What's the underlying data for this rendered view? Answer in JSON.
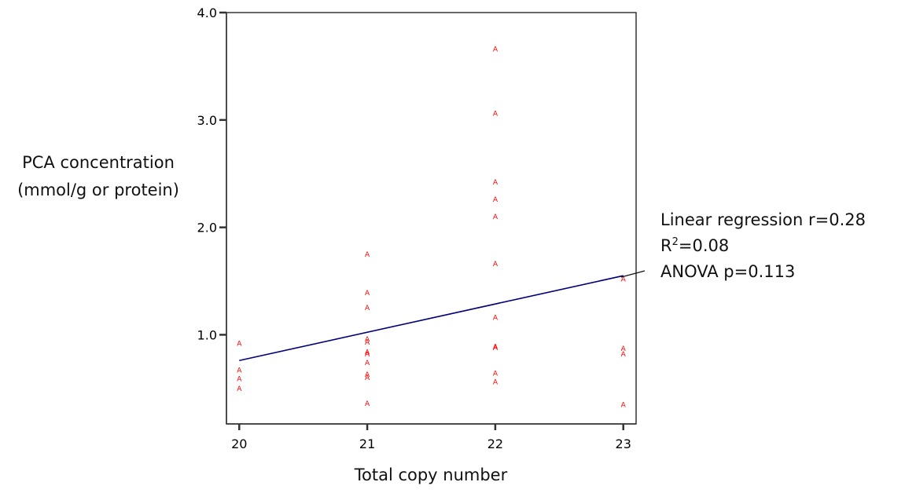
{
  "chart_data": {
    "type": "scatter",
    "xlabel": "Total copy number",
    "ylabel_lines": [
      "PCA concentration",
      "(mmol/g or protein)"
    ],
    "xlim": [
      19.9,
      23.1
    ],
    "ylim": [
      0.17,
      4.0
    ],
    "x_ticks": [
      20,
      21,
      22,
      23
    ],
    "x_tick_labels": [
      "20",
      "21",
      "22",
      "23"
    ],
    "y_ticks": [
      1.0,
      2.0,
      3.0,
      4.0
    ],
    "y_tick_labels": [
      "1.0",
      "2.0",
      "3.0",
      "4.0"
    ],
    "grid": false,
    "marker_symbol": "A",
    "marker_color": "#ff0000",
    "line_color": "#00007a",
    "points": [
      {
        "x": 20,
        "y": 0.92
      },
      {
        "x": 20,
        "y": 0.67
      },
      {
        "x": 20,
        "y": 0.59
      },
      {
        "x": 20,
        "y": 0.5
      },
      {
        "x": 21,
        "y": 1.75
      },
      {
        "x": 21,
        "y": 1.39
      },
      {
        "x": 21,
        "y": 1.25
      },
      {
        "x": 21,
        "y": 0.96
      },
      {
        "x": 21,
        "y": 0.93
      },
      {
        "x": 21,
        "y": 0.84
      },
      {
        "x": 21,
        "y": 0.82
      },
      {
        "x": 21,
        "y": 0.74
      },
      {
        "x": 21,
        "y": 0.63
      },
      {
        "x": 21,
        "y": 0.6
      },
      {
        "x": 21,
        "y": 0.36
      },
      {
        "x": 22,
        "y": 3.66
      },
      {
        "x": 22,
        "y": 3.06
      },
      {
        "x": 22,
        "y": 2.42
      },
      {
        "x": 22,
        "y": 2.26
      },
      {
        "x": 22,
        "y": 2.1
      },
      {
        "x": 22,
        "y": 1.66
      },
      {
        "x": 22,
        "y": 1.16
      },
      {
        "x": 22,
        "y": 0.89
      },
      {
        "x": 22,
        "y": 0.88
      },
      {
        "x": 22,
        "y": 0.64
      },
      {
        "x": 22,
        "y": 0.56
      },
      {
        "x": 23,
        "y": 1.52
      },
      {
        "x": 23,
        "y": 0.87
      },
      {
        "x": 23,
        "y": 0.82
      },
      {
        "x": 23,
        "y": 0.35
      }
    ],
    "regression_line": {
      "x": [
        20,
        23
      ],
      "y": [
        0.76,
        1.55
      ]
    },
    "annotation": {
      "line1": "Linear regression r=0.28",
      "line2_base": "R",
      "line2_sup": "2",
      "line2_rest": "=0.08",
      "line3": "ANOVA p=0.113"
    }
  }
}
